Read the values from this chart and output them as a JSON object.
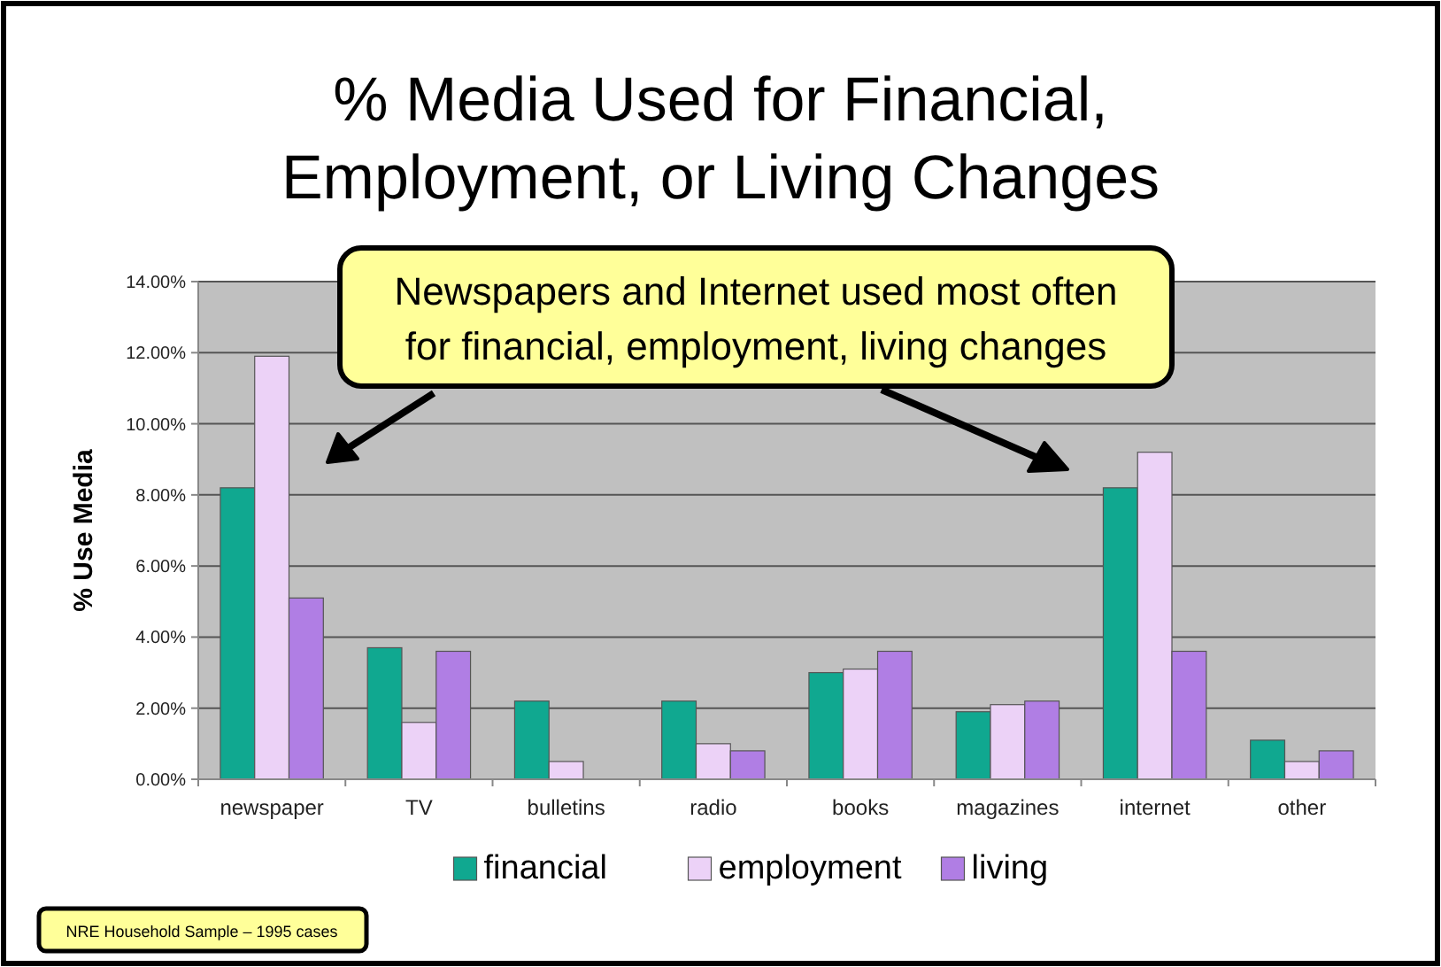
{
  "chart_data": {
    "type": "bar",
    "title": "% Media Used for Financial, Employment, or Living Changes",
    "ylabel": "% Use Media",
    "categories": [
      "newspaper",
      "TV",
      "bulletins",
      "radio",
      "books",
      "magazines",
      "internet",
      "other"
    ],
    "series": [
      {
        "name": "financial",
        "color": "#10a890",
        "values": [
          8.2,
          3.7,
          2.2,
          2.2,
          3.0,
          1.9,
          8.2,
          1.1
        ]
      },
      {
        "name": "employment",
        "color": "#ecd2f7",
        "values": [
          11.9,
          1.6,
          0.5,
          1.0,
          3.1,
          2.1,
          9.2,
          0.5
        ]
      },
      {
        "name": "living",
        "color": "#b07ee4",
        "values": [
          5.1,
          3.6,
          0,
          0.8,
          3.6,
          2.2,
          3.6,
          0.8
        ]
      }
    ],
    "ylim": [
      0,
      14
    ],
    "yticks": [
      {
        "value": 0,
        "label": "0.00%"
      },
      {
        "value": 2,
        "label": "2.00%"
      },
      {
        "value": 4,
        "label": "4.00%"
      },
      {
        "value": 6,
        "label": "6.00%"
      },
      {
        "value": 8,
        "label": "8.00%"
      },
      {
        "value": 10,
        "label": "10.00%"
      },
      {
        "value": 12,
        "label": "12.00%"
      },
      {
        "value": 14,
        "label": "14.00%"
      }
    ],
    "grid": "y",
    "legend": "bottom",
    "annotations": [
      "Newspapers and Internet used most often for financial, employment, living changes",
      "NRE Household Sample – 1995 cases"
    ]
  }
}
